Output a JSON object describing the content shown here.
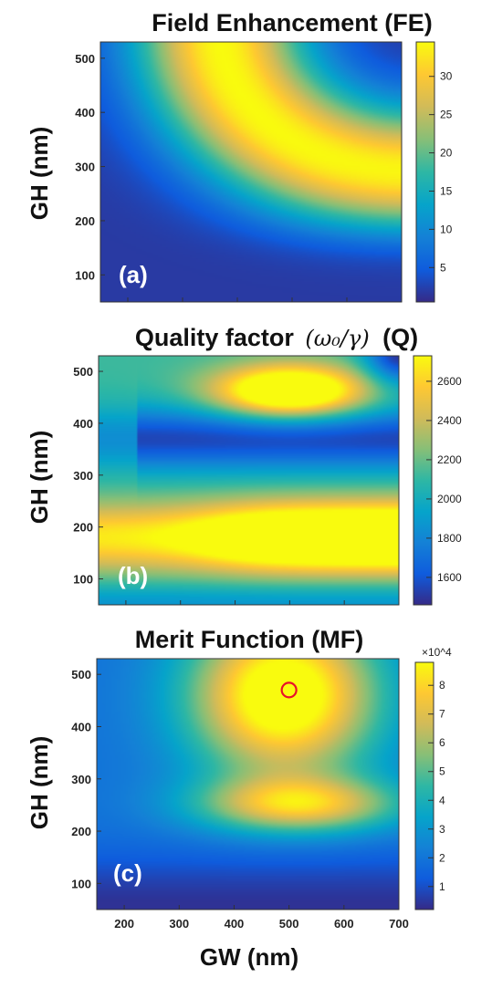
{
  "chart_data": [
    {
      "type": "heatmap",
      "title": "Field Enhancement (FE)",
      "ylabel": "GH (nm)",
      "xlabel": "",
      "panel_label": "(a)",
      "x_range": [
        150,
        700
      ],
      "y_range": [
        50,
        530
      ],
      "y_ticks": [
        100,
        200,
        300,
        400,
        500
      ],
      "x_ticks_shown": false,
      "colorbar": {
        "range": [
          0.5,
          34.5
        ],
        "ticks": [
          5,
          10,
          15,
          20,
          25,
          30
        ],
        "multiplier": ""
      },
      "colormap": "parula",
      "max_region": "broad maximum (~34) along ridge near GW 300–700 nm, GH 250–500 nm",
      "min_region": "minimum (~1) at bottom, GH < 100 nm"
    },
    {
      "type": "heatmap",
      "title": "Quality factor",
      "title_math": "(ω₀/γ)",
      "title_suffix": "(Q)",
      "ylabel": "GH (nm)",
      "xlabel": "",
      "panel_label": "(b)",
      "x_range": [
        150,
        700
      ],
      "y_range": [
        50,
        530
      ],
      "y_ticks": [
        100,
        200,
        300,
        400,
        500
      ],
      "x_ticks_shown": false,
      "colorbar": {
        "range": [
          1460,
          2730
        ],
        "ticks": [
          1600,
          1800,
          2000,
          2200,
          2400,
          2600
        ],
        "multiplier": ""
      },
      "colormap": "parula",
      "max_region": "high Q (~2700) bands near GH ~180 nm (GW > 400 nm) and GH ~460 nm (GW ~500 nm)",
      "min_region": "low Q (~1500) band near GH ~350–400 nm and top-right corner"
    },
    {
      "type": "heatmap",
      "title": "Merit Function (MF)",
      "ylabel": "GH (nm)",
      "xlabel": "GW (nm)",
      "panel_label": "(c)",
      "x_range": [
        150,
        700
      ],
      "y_range": [
        50,
        530
      ],
      "x_ticks": [
        200,
        300,
        400,
        500,
        600,
        700
      ],
      "y_ticks": [
        100,
        200,
        300,
        400,
        500
      ],
      "colorbar": {
        "range": [
          0.2,
          8.8
        ],
        "ticks": [
          1,
          2,
          3,
          4,
          5,
          6,
          7,
          8
        ],
        "multiplier": "×10^4"
      },
      "colormap": "parula",
      "marker": {
        "x": 500,
        "y": 470,
        "shape": "circle",
        "color": "#e8102a"
      },
      "max_region": "maximum (~8.5×10^4) near GW 500 nm, GH 470 nm; second ridge near GH ~250 nm",
      "min_region": "minimum at bottom, GH < 100 nm"
    }
  ]
}
